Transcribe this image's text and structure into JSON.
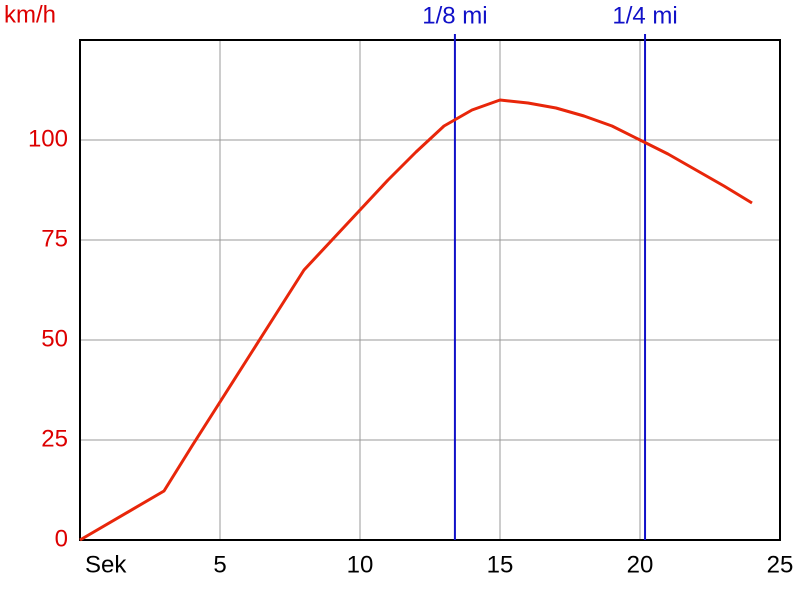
{
  "chart_data": {
    "type": "line",
    "y_label": "km/h",
    "x": [
      0,
      3,
      4,
      5,
      6,
      7,
      8,
      9,
      10,
      11,
      12,
      13,
      14,
      15,
      16,
      17,
      18,
      19,
      20,
      21,
      22,
      23,
      24
    ],
    "values": [
      0,
      12.25,
      23.5,
      34.5,
      45.5,
      56.5,
      67.5,
      75,
      82.5,
      90,
      97,
      103.5,
      107.5,
      110,
      109.25,
      108,
      106,
      103.5,
      100,
      96.5,
      92.5,
      88.5,
      84.25
    ],
    "color": "#e8260a",
    "xlim": [
      0,
      25
    ],
    "xticks": [
      {
        "value": 0,
        "label": "Sek"
      },
      5,
      10,
      15,
      20,
      25
    ],
    "ylim": [
      0,
      125
    ],
    "yticks": [
      0,
      25,
      50,
      75,
      100
    ],
    "grid": true,
    "markers": [
      {
        "x": 13.39,
        "label": "1/8 mi"
      },
      {
        "x": 20.18,
        "label": "1/4 mi"
      }
    ],
    "marker_color": "#1010c8",
    "axis_label_color": "#dd0000"
  }
}
